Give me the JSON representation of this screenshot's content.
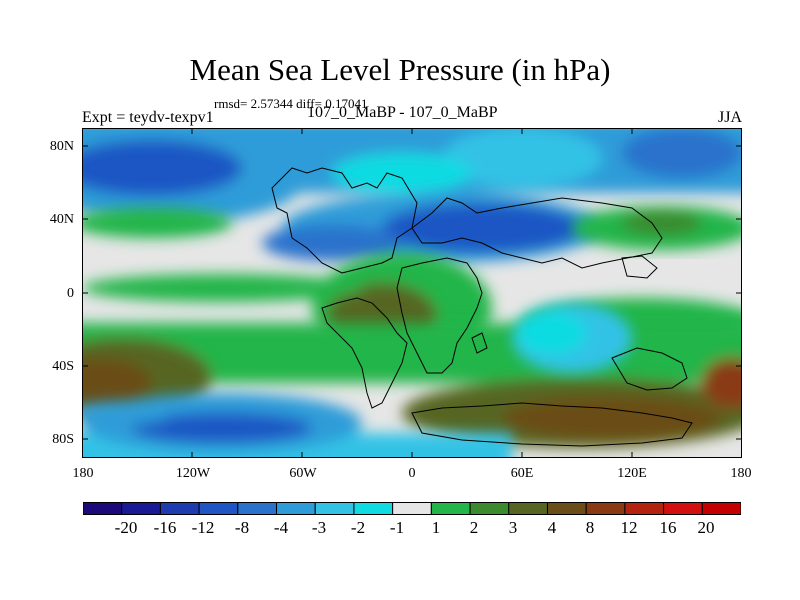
{
  "title": "Mean Sea Level Pressure (in hPa)",
  "stats": "rmsd= 2.57344 diff= 0.17041",
  "left_label": "Expt = teydv-texpv1",
  "center_label": "107_0_MaBP - 107_0_MaBP",
  "right_label": "JJA",
  "lat_labels": [
    "80N",
    "40N",
    "0",
    "40S",
    "80S"
  ],
  "lon_labels": [
    "180",
    "120W",
    "60W",
    "0",
    "60E",
    "120E",
    "180"
  ],
  "colorbar": {
    "labels": [
      "-20",
      "-16",
      "-12",
      "-8",
      "-4",
      "-3",
      "-2",
      "-1",
      "1",
      "2",
      "3",
      "4",
      "8",
      "12",
      "16",
      "20"
    ],
    "colors": [
      "#1c0a7a",
      "#1a1a96",
      "#1f3bb0",
      "#1f56c4",
      "#2a72cc",
      "#2e9cd8",
      "#33c2e6",
      "#11dbe2",
      "#e6e6e6",
      "#22b54a",
      "#3b8a2e",
      "#566622",
      "#6b4e17",
      "#8a3a12",
      "#b3240e",
      "#d21010",
      "#c40000"
    ]
  }
}
